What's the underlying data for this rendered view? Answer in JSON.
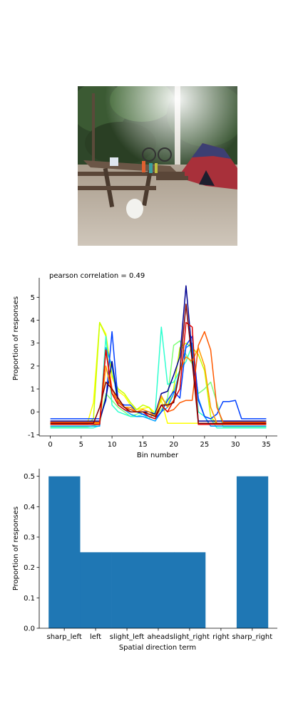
{
  "photo": {
    "description_icon": "campsite-photo",
    "colors": {
      "sky": "#e8efe6",
      "trees": "#2f4a2a",
      "ground": "#b9ada0",
      "tent": "#a8303a",
      "tent_top": "#3c3f73",
      "table": "#6b5646"
    }
  },
  "chart_data": [
    {
      "type": "line",
      "title": "pearson correlation = 0.49",
      "xlabel": "Bin number",
      "ylabel": "Proportion of responses",
      "xlim": [
        -1.8,
        36.8
      ],
      "ylim": [
        -1.05,
        5.85
      ],
      "xticks": [
        0,
        5,
        10,
        15,
        20,
        25,
        30,
        35
      ],
      "yticks": [
        -1,
        0,
        1,
        2,
        3,
        4,
        5
      ],
      "grid": false,
      "x": [
        0,
        1,
        2,
        3,
        4,
        5,
        6,
        7,
        8,
        9,
        10,
        11,
        12,
        13,
        14,
        15,
        16,
        17,
        18,
        19,
        20,
        21,
        22,
        23,
        24,
        25,
        26,
        27,
        28,
        29,
        30,
        31,
        32,
        33,
        34,
        35
      ],
      "series": [
        {
          "color": "#ffff00",
          "values": [
            -0.5,
            -0.5,
            -0.5,
            -0.5,
            -0.5,
            -0.5,
            -0.5,
            0.4,
            3.9,
            3.4,
            1.5,
            0.9,
            0.7,
            0.3,
            0.1,
            0.15,
            0.2,
            -0.05,
            0.5,
            -0.5,
            -0.5,
            -0.5,
            -0.5,
            -0.5,
            -0.5,
            -0.5,
            -0.5,
            -0.5,
            -0.5,
            -0.5,
            -0.5,
            -0.5,
            -0.5,
            -0.5,
            -0.5,
            -0.5
          ]
        },
        {
          "color": "#c8ff00",
          "values": [
            -0.55,
            -0.55,
            -0.55,
            -0.55,
            -0.55,
            -0.55,
            -0.55,
            -0.3,
            3.9,
            3.3,
            1.6,
            1.0,
            0.8,
            0.4,
            0.1,
            0.3,
            0.2,
            -0.2,
            0.6,
            0.3,
            1.0,
            2.8,
            3.0,
            2.8,
            2.5,
            1.8,
            -0.2,
            -0.55,
            -0.55,
            -0.55,
            -0.55,
            -0.55,
            -0.55,
            -0.55,
            -0.55,
            -0.55
          ]
        },
        {
          "color": "#7fff7a",
          "values": [
            -0.65,
            -0.65,
            -0.65,
            -0.65,
            -0.65,
            -0.65,
            -0.65,
            -0.6,
            -0.5,
            0.8,
            0.5,
            0.2,
            0.0,
            -0.2,
            -0.1,
            0.0,
            -0.1,
            -0.2,
            0.1,
            0.6,
            2.9,
            3.1,
            2.5,
            2.1,
            0.8,
            1.0,
            1.3,
            0.4,
            -0.65,
            -0.65,
            -0.65,
            -0.65,
            -0.65,
            -0.65,
            -0.65,
            -0.65
          ]
        },
        {
          "color": "#2fffd0",
          "values": [
            -0.7,
            -0.7,
            -0.7,
            -0.7,
            -0.7,
            -0.7,
            -0.7,
            -0.7,
            -0.6,
            3.3,
            0.3,
            0.0,
            -0.1,
            -0.2,
            -0.2,
            -0.1,
            -0.3,
            0.0,
            3.7,
            1.2,
            1.3,
            1.8,
            2.2,
            2.9,
            0.0,
            -0.2,
            -0.3,
            -0.7,
            -0.7,
            -0.7,
            -0.7,
            -0.7,
            -0.7,
            -0.7,
            -0.7,
            -0.7
          ]
        },
        {
          "color": "#00a0ff",
          "values": [
            -0.62,
            -0.62,
            -0.62,
            -0.62,
            -0.62,
            -0.62,
            -0.62,
            -0.62,
            -0.62,
            2.8,
            2.0,
            0.3,
            0.1,
            -0.1,
            -0.2,
            -0.2,
            -0.3,
            -0.4,
            0.0,
            0.2,
            0.8,
            1.8,
            2.8,
            3.0,
            0.6,
            -0.2,
            -0.62,
            -0.62,
            -0.62,
            -0.62,
            -0.62,
            -0.62,
            -0.62,
            -0.62,
            -0.62,
            -0.62
          ]
        },
        {
          "color": "#0040ff",
          "values": [
            -0.3,
            -0.3,
            -0.3,
            -0.3,
            -0.3,
            -0.3,
            -0.3,
            -0.3,
            -0.3,
            0.5,
            3.5,
            0.4,
            0.3,
            0.3,
            0.0,
            -0.1,
            -0.2,
            -0.3,
            0.0,
            0.5,
            0.9,
            0.6,
            2.9,
            3.3,
            0.5,
            -0.2,
            -0.3,
            -0.1,
            0.45,
            0.45,
            0.5,
            -0.3,
            -0.3,
            -0.3,
            -0.3,
            -0.3
          ]
        },
        {
          "color": "#000090",
          "values": [
            -0.4,
            -0.4,
            -0.4,
            -0.4,
            -0.4,
            -0.4,
            -0.4,
            -0.4,
            -0.4,
            0.6,
            2.2,
            0.4,
            0.2,
            0.1,
            0.0,
            0.0,
            0.0,
            -0.1,
            0.8,
            0.9,
            1.6,
            2.4,
            5.5,
            2.5,
            -0.4,
            -0.4,
            -0.4,
            -0.4,
            -0.4,
            -0.4,
            -0.4,
            -0.4,
            -0.4,
            -0.4,
            -0.4,
            -0.4
          ]
        },
        {
          "color": "#ff9a00",
          "values": [
            -0.5,
            -0.5,
            -0.5,
            -0.5,
            -0.5,
            -0.5,
            -0.5,
            -0.5,
            -0.5,
            2.0,
            0.8,
            0.5,
            0.2,
            0.2,
            0.0,
            0.1,
            0.0,
            -0.2,
            0.7,
            0.2,
            0.5,
            1.8,
            2.4,
            2.2,
            2.8,
            2.0,
            0.2,
            -0.5,
            -0.5,
            -0.5,
            -0.5,
            -0.5,
            -0.5,
            -0.5,
            -0.5,
            -0.5
          ]
        },
        {
          "color": "#ff5a00",
          "values": [
            -0.45,
            -0.45,
            -0.45,
            -0.45,
            -0.45,
            -0.45,
            -0.45,
            -0.45,
            -0.45,
            2.7,
            1.0,
            0.4,
            0.2,
            0.1,
            0.0,
            0.0,
            -0.1,
            -0.2,
            0.3,
            0.0,
            0.1,
            0.4,
            0.5,
            0.5,
            2.9,
            3.5,
            2.7,
            0.2,
            -0.45,
            -0.45,
            -0.45,
            -0.45,
            -0.45,
            -0.45,
            -0.45,
            -0.45
          ]
        },
        {
          "color": "#e00000",
          "values": [
            -0.55,
            -0.55,
            -0.55,
            -0.55,
            -0.55,
            -0.55,
            -0.55,
            -0.55,
            -0.55,
            2.7,
            0.8,
            0.3,
            0.1,
            0.0,
            0.0,
            0.0,
            -0.2,
            -0.3,
            0.3,
            0.0,
            0.5,
            1.0,
            3.9,
            3.7,
            -0.55,
            -0.55,
            -0.55,
            -0.55,
            -0.55,
            -0.55,
            -0.55,
            -0.55,
            -0.55,
            -0.55,
            -0.55,
            -0.55
          ]
        },
        {
          "color": "#800000",
          "values": [
            -0.5,
            -0.5,
            -0.5,
            -0.5,
            -0.5,
            -0.5,
            -0.5,
            -0.5,
            0.2,
            1.3,
            1.0,
            0.6,
            0.2,
            0.0,
            0.0,
            0.0,
            -0.1,
            -0.2,
            0.3,
            0.3,
            0.4,
            1.8,
            4.7,
            2.2,
            -0.5,
            -0.5,
            -0.5,
            -0.5,
            -0.5,
            -0.5,
            -0.5,
            -0.5,
            -0.5,
            -0.5,
            -0.5,
            -0.5
          ]
        }
      ]
    },
    {
      "type": "bar",
      "xlabel": "Spatial direction term",
      "ylabel": "Proportion of responses",
      "categories": [
        "sharp_left",
        "left",
        "slight_left",
        "ahead",
        "slight_right",
        "right",
        "sharp_right"
      ],
      "values": [
        0.5,
        0.25,
        0.25,
        0.25,
        0.25,
        0.0,
        0.5
      ],
      "ylim": [
        0,
        0.525
      ],
      "yticks": [
        "0.0",
        "0.1",
        "0.2",
        "0.3",
        "0.4",
        "0.5"
      ],
      "bar_color": "#1f77b4",
      "grid": false
    }
  ]
}
